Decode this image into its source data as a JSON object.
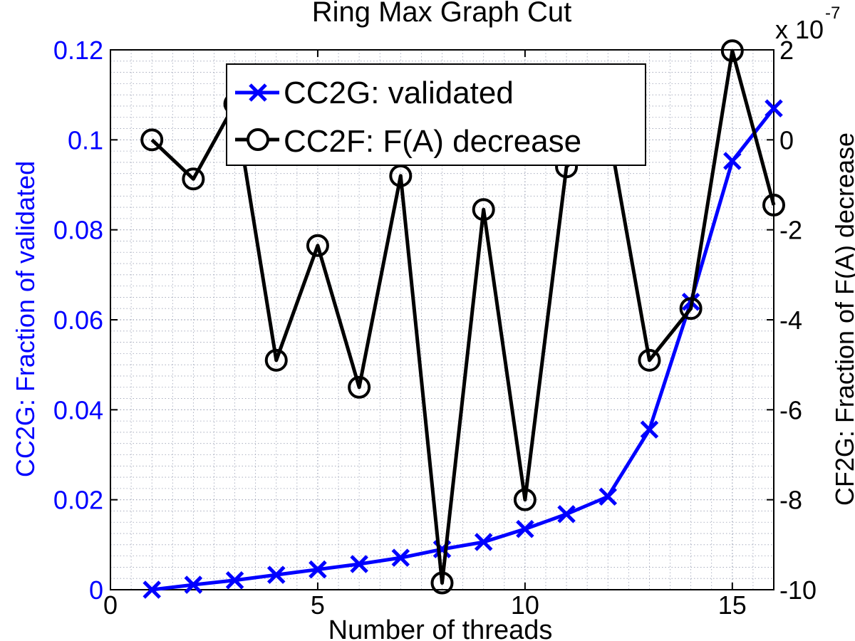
{
  "chart_data": {
    "type": "line",
    "title": "Ring Max Graph Cut",
    "xlabel": "Number of threads",
    "ylabel_left": "CC2G: Fraction of validated",
    "ylabel_right": "CF2G: Fraction of F(A) decrease",
    "right_axis_multiplier": "x 10",
    "right_axis_exponent": "-7",
    "xlim": [
      0,
      16
    ],
    "ylim_left": [
      0,
      0.12
    ],
    "ylim_right": [
      -10,
      2
    ],
    "xticks": [
      "0",
      "5",
      "10",
      "15"
    ],
    "yticks_left": [
      "0",
      "0.02",
      "0.04",
      "0.06",
      "0.08",
      "0.1",
      "0.12"
    ],
    "yticks_right": [
      "-10",
      "-8",
      "-6",
      "-4",
      "-2",
      "0",
      "2"
    ],
    "grid": true,
    "legend_position": "top-center",
    "series": [
      {
        "name": "CC2G: validated",
        "axis": "left",
        "color": "#0000ff",
        "marker": "x",
        "x": [
          1,
          2,
          3,
          4,
          5,
          6,
          7,
          8,
          9,
          10,
          11,
          12,
          13,
          14,
          15,
          16
        ],
        "values": [
          0.0,
          0.0011,
          0.0021,
          0.0033,
          0.0045,
          0.0057,
          0.0071,
          0.009,
          0.0106,
          0.0135,
          0.0168,
          0.0207,
          0.0356,
          0.064,
          0.0953,
          0.107
        ]
      },
      {
        "name": "CC2F: F(A) decrease",
        "axis": "right",
        "color": "#000000",
        "marker": "o",
        "x": [
          1,
          2,
          3,
          4,
          5,
          6,
          7,
          8,
          9,
          10,
          11,
          12,
          13,
          14,
          15,
          16
        ],
        "values": [
          0.0,
          -0.87,
          0.8,
          -4.9,
          -2.35,
          -5.5,
          -0.8,
          -9.85,
          -1.55,
          -8.0,
          -0.6,
          0.3,
          -4.9,
          -3.75,
          1.98,
          -1.45
        ]
      }
    ]
  }
}
